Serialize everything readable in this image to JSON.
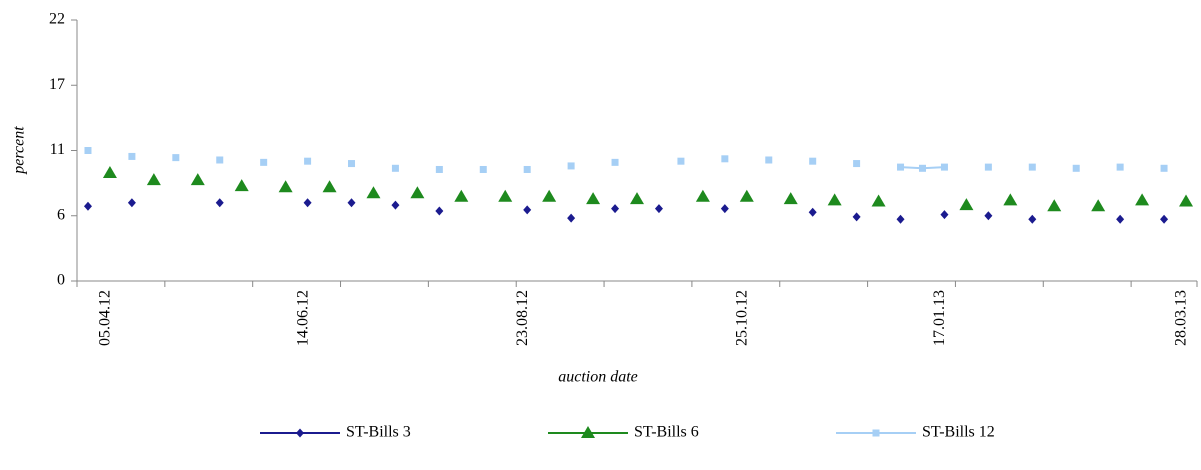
{
  "chart_data": {
    "type": "line",
    "x_label": "auction date",
    "y_label": "percent",
    "categories": [
      null,
      "05.04.12",
      null,
      null,
      null,
      null,
      null,
      null,
      null,
      null,
      "14.06.12",
      null,
      null,
      null,
      null,
      null,
      null,
      null,
      null,
      null,
      "23.08.12",
      null,
      null,
      null,
      null,
      null,
      null,
      null,
      null,
      null,
      "25.10.12",
      null,
      null,
      null,
      null,
      null,
      null,
      null,
      null,
      "17.01.13",
      null,
      null,
      null,
      null,
      null,
      null,
      null,
      null,
      null,
      null,
      "28.03.13"
    ],
    "ylim": [
      0,
      22
    ],
    "yticks": [
      0,
      {
        "value": 5.5,
        "label": "6"
      },
      11,
      {
        "value": 16.5,
        "label": "17"
      },
      22
    ],
    "series": [
      {
        "name": "ST-Bills 3",
        "color": "#1b1b8f",
        "marker": "diamond",
        "values": [
          6.3,
          null,
          6.6,
          null,
          null,
          null,
          6.6,
          null,
          null,
          null,
          6.6,
          null,
          6.6,
          null,
          6.4,
          null,
          5.9,
          null,
          null,
          null,
          6.0,
          null,
          5.3,
          null,
          6.1,
          null,
          6.1,
          null,
          null,
          6.1,
          null,
          null,
          null,
          5.8,
          null,
          5.4,
          null,
          5.2,
          null,
          5.6,
          null,
          5.5,
          null,
          5.2,
          null,
          null,
          null,
          5.2,
          null,
          5.2,
          null
        ]
      },
      {
        "name": "ST-Bills 6",
        "color": "#1e8a1e",
        "marker": "triangle",
        "values": [
          null,
          9.1,
          null,
          8.5,
          null,
          8.5,
          null,
          8.0,
          null,
          7.9,
          null,
          7.9,
          null,
          7.4,
          null,
          7.4,
          null,
          7.1,
          null,
          7.1,
          null,
          7.1,
          null,
          6.9,
          null,
          6.9,
          null,
          null,
          7.1,
          null,
          7.1,
          null,
          6.9,
          null,
          6.8,
          null,
          6.7,
          null,
          null,
          null,
          6.4,
          null,
          6.8,
          null,
          6.3,
          null,
          6.3,
          null,
          6.8,
          null,
          6.7
        ]
      },
      {
        "name": "ST-Bills 12",
        "color": "#a6cff5",
        "marker": "square",
        "values": [
          11.0,
          null,
          10.5,
          null,
          10.4,
          null,
          10.2,
          null,
          10.0,
          null,
          10.1,
          null,
          9.9,
          null,
          9.5,
          null,
          9.4,
          null,
          9.4,
          null,
          9.4,
          null,
          9.7,
          null,
          10.0,
          null,
          null,
          10.1,
          null,
          10.3,
          null,
          10.2,
          null,
          10.1,
          null,
          9.9,
          null,
          9.6,
          9.5,
          9.6,
          null,
          9.6,
          null,
          9.6,
          null,
          9.5,
          null,
          9.6,
          null,
          9.5,
          null
        ]
      }
    ]
  }
}
